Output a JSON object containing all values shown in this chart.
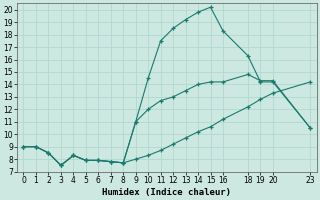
{
  "xlabel": "Humidex (Indice chaleur)",
  "bg_color": "#cce8e0",
  "grid_color": "#b0d8d0",
  "line_color": "#1a7a6e",
  "xlim": [
    -0.5,
    23.5
  ],
  "ylim": [
    7,
    20.5
  ],
  "xticks": [
    0,
    1,
    2,
    3,
    4,
    5,
    6,
    7,
    8,
    9,
    10,
    11,
    12,
    13,
    14,
    15,
    16,
    18,
    19,
    20,
    23
  ],
  "yticks": [
    7,
    8,
    9,
    10,
    11,
    12,
    13,
    14,
    15,
    16,
    17,
    18,
    19,
    20
  ],
  "line1_x": [
    0,
    1,
    2,
    3,
    4,
    5,
    6,
    7,
    8,
    9,
    10,
    11,
    12,
    13,
    14,
    15,
    16,
    18,
    19,
    20,
    23
  ],
  "line1_y": [
    9,
    9,
    8.5,
    7.5,
    8.3,
    7.9,
    7.9,
    7.8,
    7.7,
    11.0,
    14.5,
    17.5,
    18.5,
    19.2,
    19.8,
    20.2,
    18.3,
    16.3,
    14.2,
    14.2,
    10.5
  ],
  "line2_x": [
    0,
    1,
    2,
    3,
    4,
    5,
    6,
    7,
    8,
    9,
    10,
    11,
    12,
    13,
    14,
    15,
    16,
    18,
    19,
    20,
    23
  ],
  "line2_y": [
    9,
    9,
    8.5,
    7.5,
    8.3,
    7.9,
    7.9,
    7.8,
    7.7,
    8.0,
    8.3,
    8.7,
    9.2,
    9.7,
    10.2,
    10.6,
    11.2,
    12.2,
    12.8,
    13.3,
    14.2
  ],
  "line3_x": [
    0,
    1,
    2,
    3,
    4,
    5,
    6,
    7,
    8,
    9,
    10,
    11,
    12,
    13,
    14,
    15,
    16,
    18,
    19,
    20,
    23
  ],
  "line3_y": [
    9,
    9,
    8.5,
    7.5,
    8.3,
    7.9,
    7.9,
    7.8,
    7.7,
    11.0,
    12.0,
    12.7,
    13.0,
    13.5,
    14.0,
    14.2,
    14.2,
    14.8,
    14.3,
    14.3,
    10.5
  ]
}
